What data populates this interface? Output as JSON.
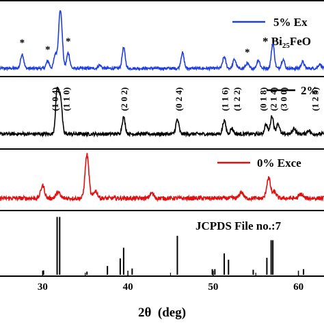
{
  "chart_data": {
    "type": "line",
    "title": "",
    "xlabel": "2θ  (deg)",
    "ylabel": "",
    "xlim": [
      25,
      63
    ],
    "grid": false,
    "x_ticks": [
      30,
      40,
      50,
      60
    ],
    "series": [
      {
        "name": "5% Ex",
        "color": "#1f3fe0",
        "peaks": [
          [
            27.6,
            0.35
          ],
          [
            30.6,
            0.18
          ],
          [
            31.5,
            0.35
          ],
          [
            32.0,
            0.95
          ],
          [
            32.2,
            0.7
          ],
          [
            33.0,
            0.38
          ],
          [
            36.7,
            0.08
          ],
          [
            39.5,
            0.5
          ],
          [
            46.4,
            0.38
          ],
          [
            51.3,
            0.28
          ],
          [
            52.5,
            0.22
          ],
          [
            54.0,
            0.12
          ],
          [
            55.3,
            0.2
          ],
          [
            57.0,
            0.6
          ],
          [
            58.2,
            0.22
          ],
          [
            60.5,
            0.16
          ],
          [
            62.5,
            0.1
          ]
        ],
        "markers": [
          {
            "x": 27.6,
            "symbol": "*"
          },
          {
            "x": 30.6,
            "symbol": "*"
          },
          {
            "x": 33.0,
            "symbol": "*"
          },
          {
            "x": 54.0,
            "symbol": "*"
          }
        ]
      },
      {
        "name": "2%",
        "color": "#000000",
        "peaks": [
          [
            31.7,
            0.9
          ],
          [
            32.1,
            0.75
          ],
          [
            39.5,
            0.35
          ],
          [
            45.8,
            0.3
          ],
          [
            51.3,
            0.28
          ],
          [
            52.2,
            0.12
          ],
          [
            56.2,
            0.2
          ],
          [
            56.9,
            0.38
          ],
          [
            57.6,
            0.22
          ],
          [
            59.5,
            0.12
          ],
          [
            61.2,
            0.08
          ]
        ],
        "hkl_labels": [
          {
            "x": 31.5,
            "label": "(1 0 4)"
          },
          {
            "x": 32.8,
            "label": "(1 1 0)"
          },
          {
            "x": 39.6,
            "label": "(2 0 2)"
          },
          {
            "x": 46.0,
            "label": "(0 2 4)"
          },
          {
            "x": 51.4,
            "label": "(1 1 6)"
          },
          {
            "x": 52.8,
            "label": "(1 2 2)"
          },
          {
            "x": 55.9,
            "label": "(0 1 8)"
          },
          {
            "x": 57.1,
            "label": "(2 1 4)"
          },
          {
            "x": 58.3,
            "label": "(3 0 0)"
          },
          {
            "x": 62.0,
            "label": "(1 2 5)"
          }
        ]
      },
      {
        "name": "0% Exce",
        "color": "#e01010",
        "peaks": [
          [
            30.0,
            0.25
          ],
          [
            31.8,
            0.12
          ],
          [
            35.2,
            0.85
          ],
          [
            36.2,
            0.15
          ],
          [
            42.8,
            0.1
          ],
          [
            53.3,
            0.12
          ],
          [
            56.5,
            0.4
          ],
          [
            57.2,
            0.12
          ],
          [
            60.3,
            0.08
          ]
        ]
      }
    ],
    "reference": {
      "label": "JCPDS File no.:7",
      "color": "#000000",
      "lines": [
        [
          30.1,
          0.07
        ],
        [
          31.7,
          0.92
        ],
        [
          32.0,
          0.92
        ],
        [
          35.2,
          0.05
        ],
        [
          37.6,
          0.14
        ],
        [
          39.1,
          0.26
        ],
        [
          39.5,
          0.43
        ],
        [
          40.5,
          0.1
        ],
        [
          45.8,
          0.62
        ],
        [
          49.9,
          0.09
        ],
        [
          50.2,
          0.09
        ],
        [
          51.3,
          0.34
        ],
        [
          51.8,
          0.24
        ],
        [
          54.7,
          0.08
        ],
        [
          56.3,
          0.27
        ],
        [
          56.8,
          0.55
        ],
        [
          57.0,
          0.55
        ],
        [
          60.6,
          0.09
        ]
      ]
    },
    "legend_extra": {
      "text": "* Bi",
      "sub": "25",
      "after": "FeO"
    }
  }
}
